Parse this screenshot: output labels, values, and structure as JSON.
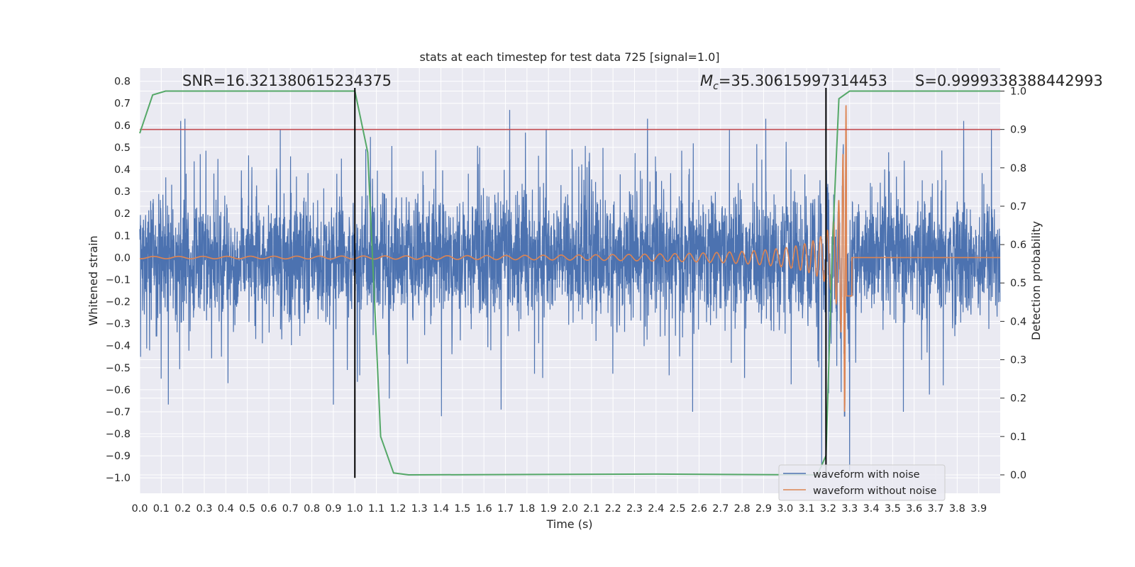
{
  "chart_data": {
    "type": "line",
    "title": "stats at each timestep for test data 725 [signal=1.0]",
    "xlabel": "Time (s)",
    "ylabel_left": "Whitened strain",
    "ylabel_right": "Detection probability",
    "xlim": [
      0.0,
      4.0
    ],
    "ylim_left": [
      -1.07,
      0.86
    ],
    "ylim_right": [
      -0.048,
      1.06
    ],
    "x_ticks": [
      "0.0",
      "0.1",
      "0.2",
      "0.3",
      "0.4",
      "0.5",
      "0.6",
      "0.7",
      "0.8",
      "0.9",
      "1.0",
      "1.1",
      "1.2",
      "1.3",
      "1.4",
      "1.5",
      "1.6",
      "1.7",
      "1.8",
      "1.9",
      "2.0",
      "2.1",
      "2.2",
      "2.3",
      "2.4",
      "2.5",
      "2.6",
      "2.7",
      "2.8",
      "2.9",
      "3.0",
      "3.1",
      "3.2",
      "3.3",
      "3.4",
      "3.5",
      "3.6",
      "3.7",
      "3.8",
      "3.9"
    ],
    "y_ticks_left": [
      "0.8",
      "0.7",
      "0.6",
      "0.5",
      "0.4",
      "0.3",
      "0.2",
      "0.1",
      "0.0",
      "−0.1",
      "−0.2",
      "−0.3",
      "−0.4",
      "−0.5",
      "−0.6",
      "−0.7",
      "−0.8",
      "−0.9",
      "−1.0"
    ],
    "y_ticks_right": [
      "1.0",
      "0.9",
      "0.8",
      "0.7",
      "0.6",
      "0.5",
      "0.4",
      "0.3",
      "0.2",
      "0.1",
      "0.0"
    ],
    "grid": true,
    "legend_position": "bottom-right",
    "annotations": {
      "snr": "SNR=16.321380615234375",
      "mc_symbol": "M",
      "mc_sub": "c",
      "mc_value": "=35.30615997314453",
      "s": "S=0.9999338388442993"
    },
    "series": [
      {
        "name": "waveform with noise",
        "axis": "left",
        "color": "#4c72b0",
        "description_values": "dense whitened noise, roughly ±0.35 typical, peaks to ±0.6",
        "peaks": [
          {
            "x": 0.19,
            "y": 0.62
          },
          {
            "x": 0.21,
            "y": 0.63
          },
          {
            "x": 0.1,
            "y": -0.55
          },
          {
            "x": 0.41,
            "y": -0.57
          },
          {
            "x": 1.16,
            "y": -0.64
          },
          {
            "x": 1.72,
            "y": 0.67
          },
          {
            "x": 1.68,
            "y": -0.69
          },
          {
            "x": 2.36,
            "y": 0.63
          },
          {
            "x": 2.57,
            "y": -0.7
          },
          {
            "x": 2.91,
            "y": 0.63
          },
          {
            "x": 3.17,
            "y": -0.95
          },
          {
            "x": 3.3,
            "y": 0.76
          },
          {
            "x": 3.3,
            "y": -0.97
          },
          {
            "x": 3.83,
            "y": 0.62
          },
          {
            "x": 3.55,
            "y": -0.7
          }
        ]
      },
      {
        "name": "waveform without noise",
        "axis": "left",
        "color": "#dd8452",
        "description_values": "chirp growing from ±0.005 at t=0 to ±0.7 at merger (t≈3.29 s), then flat 0",
        "t_merger": 3.29,
        "amp_start": 0.005,
        "amp_peak": 0.7
      },
      {
        "name": "detection probability",
        "axis": "right",
        "color": "#55a868",
        "points": [
          [
            0.0,
            0.89
          ],
          [
            0.06,
            0.99
          ],
          [
            0.12,
            1.0
          ],
          [
            0.5,
            1.0
          ],
          [
            1.0,
            1.0
          ],
          [
            1.06,
            0.84
          ],
          [
            1.12,
            0.1
          ],
          [
            1.18,
            0.005
          ],
          [
            1.25,
            0.0
          ],
          [
            2.4,
            0.002
          ],
          [
            3.15,
            0.0
          ],
          [
            3.19,
            0.05
          ],
          [
            3.22,
            0.6
          ],
          [
            3.25,
            0.98
          ],
          [
            3.3,
            1.0
          ],
          [
            4.0,
            1.0
          ]
        ]
      }
    ],
    "threshold": {
      "axis": "right",
      "value": 0.9,
      "color": "#c44e52"
    },
    "vertical_markers": [
      {
        "x": 1.0,
        "from": -1.0,
        "to": 0.77,
        "color": "#000000"
      },
      {
        "x": 3.19,
        "from": -1.0,
        "to": 0.77,
        "color": "#000000"
      }
    ]
  }
}
